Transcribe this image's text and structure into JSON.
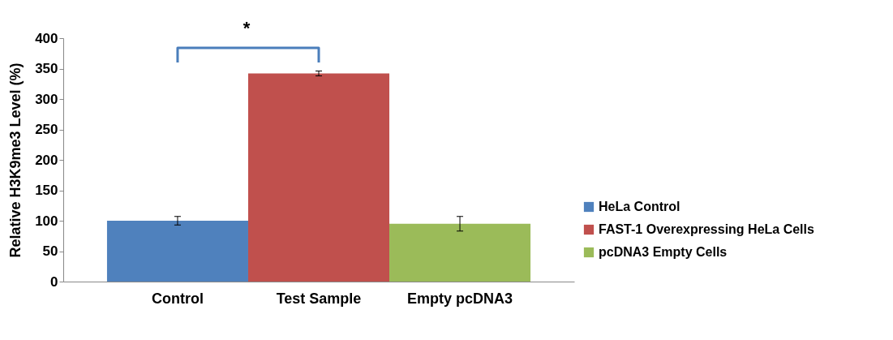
{
  "chart_data": {
    "type": "bar",
    "ylabel": "Relative H3K9me3 Level (%)",
    "categories": [
      "Control",
      "Test Sample",
      "Empty pcDNA3"
    ],
    "series": [
      {
        "name": "HeLa Control",
        "color": "#4f81bd",
        "values": [
          100,
          null,
          null
        ],
        "errors": [
          7,
          null,
          null
        ]
      },
      {
        "name": "FAST-1 Overexpressing HeLa Cells",
        "color": "#c0504d",
        "values": [
          null,
          342,
          null
        ],
        "errors": [
          null,
          4,
          null
        ]
      },
      {
        "name": "pcDNA3 Empty Cells",
        "color": "#9bbb59",
        "values": [
          null,
          null,
          95
        ],
        "errors": [
          null,
          null,
          12
        ]
      }
    ],
    "ylim": [
      0,
      400
    ],
    "yticks": [
      0,
      50,
      100,
      150,
      200,
      250,
      300,
      350,
      400
    ],
    "annotations": [
      "*"
    ],
    "grid": false,
    "legend": "right"
  }
}
